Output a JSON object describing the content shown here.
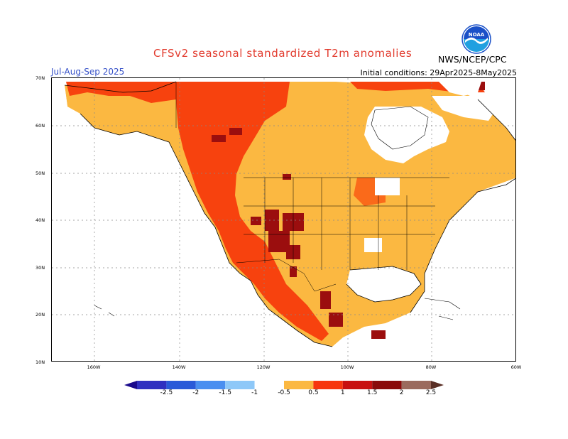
{
  "header": {
    "title": "CFSv2 seasonal standardized T2m anomalies",
    "period": "Jul-Aug-Sep 2025",
    "initial_conditions": "Initial conditions: 29Apr2025-8May2025",
    "org": "NWS/NCEP/CPC",
    "logo_icon": "noaa-logo-icon"
  },
  "map": {
    "region": "North America",
    "lat_labels": [
      "70N",
      "60N",
      "50N",
      "40N",
      "30N",
      "20N",
      "10N"
    ],
    "lon_labels": [
      "160W",
      "140W",
      "120W",
      "100W",
      "80W",
      "60W"
    ],
    "grid": true,
    "colors": {
      "background": "#ffffff",
      "anomaly_0_5_1": "#fbb841",
      "anomaly_1_1_5": "#fa5a14",
      "anomaly_1_5_2": "#e83212",
      "anomaly_2_2_5": "#9b0e0e",
      "anomaly_gt_2_5": "#8c5a4a"
    }
  },
  "legend": {
    "labels": [
      "-2.5",
      "-2",
      "-1.5",
      "-1",
      "-0.5",
      "0.5",
      "1",
      "1.5",
      "2",
      "2.5"
    ],
    "colors": [
      "#1a0a8c",
      "#3030c0",
      "#2a5ad8",
      "#4a8ff0",
      "#8ec8f8",
      "#ffffff",
      "#fbb841",
      "#f7360e",
      "#c81010",
      "#8a0a0a",
      "#9b6b5e",
      "#5a2f25"
    ]
  }
}
